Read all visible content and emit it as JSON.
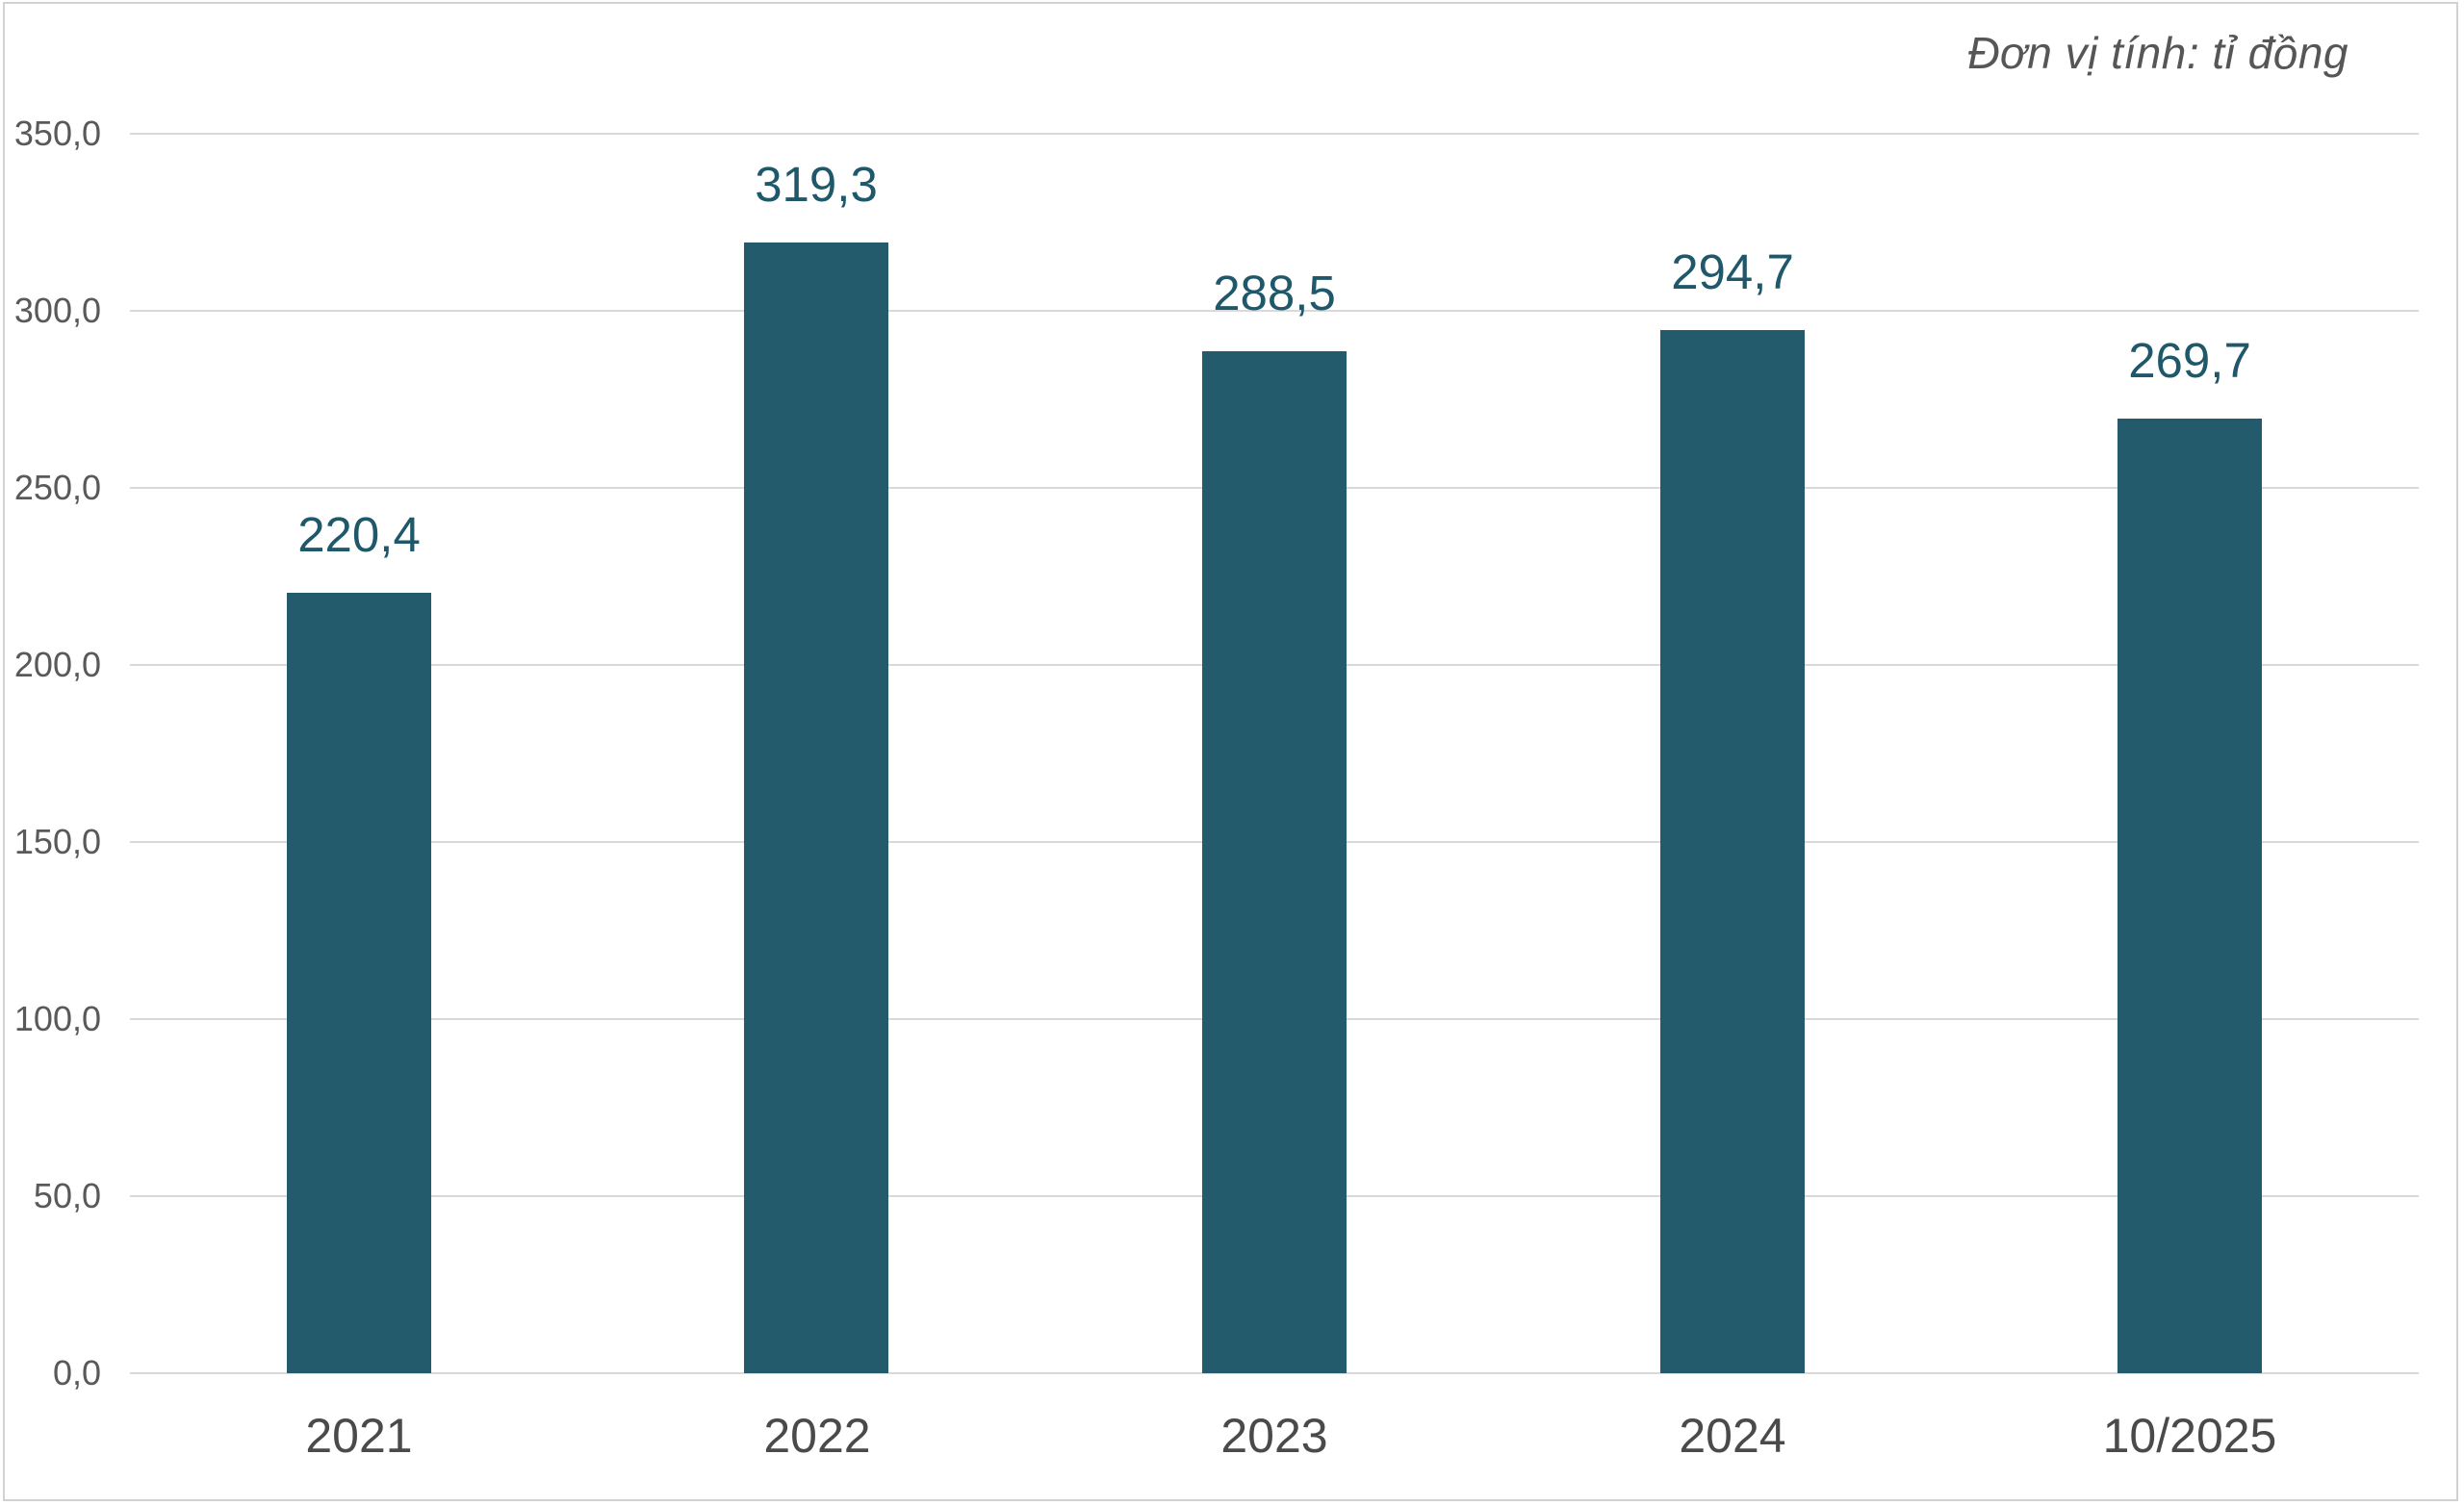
{
  "chart_data": {
    "type": "bar",
    "title": "",
    "annotation": "Đơn vị tính: tỉ đồng",
    "categories": [
      "2021",
      "2022",
      "2023",
      "2024",
      "10/2025"
    ],
    "values": [
      220.4,
      319.3,
      288.5,
      294.7,
      269.7
    ],
    "value_labels": [
      "220,4",
      "319,3",
      "288,5",
      "294,7",
      "269,7"
    ],
    "ylim": [
      0,
      350
    ],
    "ytick_step": 50,
    "ytick_labels": [
      "0,0",
      "50,0",
      "100,0",
      "150,0",
      "200,0",
      "250,0",
      "300,0",
      "350,0"
    ],
    "grid": "horizontal-only",
    "legend": "none",
    "colors": {
      "bar": "#245b6c",
      "value_label": "#1f586a",
      "gridline": "#d9d9d9",
      "ytick_text": "#595959",
      "xtick_text": "#4a4a4a",
      "annotation_text": "#565656",
      "frame_border": "#d2d2d2",
      "background": "#ffffff"
    }
  }
}
